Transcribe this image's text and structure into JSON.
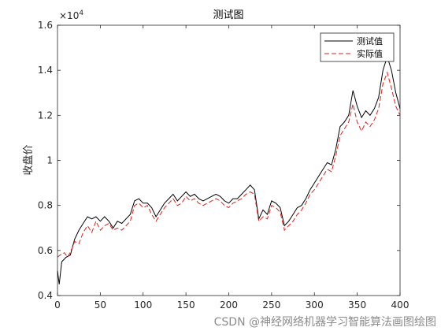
{
  "chart_data": {
    "type": "line",
    "title": "测试图",
    "xlabel": "",
    "ylabel": "收盘价",
    "xlim": [
      0,
      400
    ],
    "ylim": [
      4000,
      16000
    ],
    "x_ticks": [
      "0",
      "50",
      "100",
      "150",
      "200",
      "250",
      "300",
      "350",
      "400"
    ],
    "y_ticks": [
      "0.4",
      "0.6",
      "0.8",
      "1",
      "1.2",
      "1.4",
      "1.6"
    ],
    "y_exponent": "×10",
    "y_exponent_power": "4",
    "grid": false,
    "legend_position": "top-right",
    "series": [
      {
        "name": "测试值",
        "color": "#000000",
        "style": "solid",
        "points": [
          [
            0,
            5100
          ],
          [
            2,
            4500
          ],
          [
            5,
            5500
          ],
          [
            10,
            5700
          ],
          [
            15,
            5800
          ],
          [
            20,
            6500
          ],
          [
            25,
            6900
          ],
          [
            30,
            7200
          ],
          [
            35,
            7500
          ],
          [
            40,
            7400
          ],
          [
            45,
            7500
          ],
          [
            50,
            7300
          ],
          [
            55,
            7500
          ],
          [
            60,
            7300
          ],
          [
            65,
            7000
          ],
          [
            70,
            7300
          ],
          [
            75,
            7200
          ],
          [
            80,
            7400
          ],
          [
            85,
            7600
          ],
          [
            90,
            8200
          ],
          [
            95,
            8300
          ],
          [
            100,
            8100
          ],
          [
            105,
            8100
          ],
          [
            110,
            7900
          ],
          [
            115,
            7500
          ],
          [
            120,
            7800
          ],
          [
            125,
            8100
          ],
          [
            130,
            8300
          ],
          [
            135,
            8500
          ],
          [
            140,
            8200
          ],
          [
            145,
            8400
          ],
          [
            150,
            8600
          ],
          [
            155,
            8400
          ],
          [
            160,
            8500
          ],
          [
            165,
            8300
          ],
          [
            170,
            8200
          ],
          [
            175,
            8300
          ],
          [
            180,
            8400
          ],
          [
            185,
            8500
          ],
          [
            190,
            8400
          ],
          [
            195,
            8200
          ],
          [
            200,
            8100
          ],
          [
            205,
            8300
          ],
          [
            210,
            8300
          ],
          [
            215,
            8500
          ],
          [
            220,
            8700
          ],
          [
            225,
            8900
          ],
          [
            230,
            8700
          ],
          [
            235,
            7400
          ],
          [
            240,
            7800
          ],
          [
            245,
            7600
          ],
          [
            250,
            8200
          ],
          [
            255,
            8100
          ],
          [
            260,
            7900
          ],
          [
            265,
            7100
          ],
          [
            270,
            7300
          ],
          [
            275,
            7600
          ],
          [
            280,
            7900
          ],
          [
            285,
            8000
          ],
          [
            290,
            8300
          ],
          [
            295,
            8700
          ],
          [
            300,
            9000
          ],
          [
            305,
            9300
          ],
          [
            310,
            9600
          ],
          [
            315,
            9900
          ],
          [
            320,
            9800
          ],
          [
            325,
            10500
          ],
          [
            330,
            11500
          ],
          [
            335,
            11700
          ],
          [
            340,
            12000
          ],
          [
            345,
            13100
          ],
          [
            350,
            12400
          ],
          [
            355,
            11900
          ],
          [
            360,
            12200
          ],
          [
            365,
            12000
          ],
          [
            370,
            12300
          ],
          [
            375,
            12800
          ],
          [
            380,
            14000
          ],
          [
            385,
            14600
          ],
          [
            390,
            14000
          ],
          [
            395,
            13000
          ],
          [
            400,
            12300
          ]
        ]
      },
      {
        "name": "实际值",
        "color": "#e0201c",
        "style": "dashed",
        "points": [
          [
            0,
            5700
          ],
          [
            3,
            5800
          ],
          [
            8,
            5900
          ],
          [
            12,
            5700
          ],
          [
            17,
            6100
          ],
          [
            20,
            6400
          ],
          [
            25,
            6300
          ],
          [
            30,
            6800
          ],
          [
            35,
            7100
          ],
          [
            40,
            6800
          ],
          [
            45,
            7300
          ],
          [
            50,
            6900
          ],
          [
            55,
            7100
          ],
          [
            60,
            7200
          ],
          [
            65,
            6900
          ],
          [
            70,
            7000
          ],
          [
            75,
            6900
          ],
          [
            80,
            7100
          ],
          [
            85,
            7300
          ],
          [
            90,
            8000
          ],
          [
            95,
            8100
          ],
          [
            100,
            7900
          ],
          [
            105,
            8000
          ],
          [
            110,
            7600
          ],
          [
            115,
            7300
          ],
          [
            120,
            7600
          ],
          [
            125,
            7900
          ],
          [
            130,
            8100
          ],
          [
            135,
            8300
          ],
          [
            140,
            8000
          ],
          [
            145,
            8100
          ],
          [
            150,
            8400
          ],
          [
            155,
            8200
          ],
          [
            160,
            8300
          ],
          [
            165,
            8100
          ],
          [
            170,
            8000
          ],
          [
            175,
            8100
          ],
          [
            180,
            8200
          ],
          [
            185,
            8300
          ],
          [
            190,
            8200
          ],
          [
            195,
            8000
          ],
          [
            200,
            7900
          ],
          [
            205,
            8100
          ],
          [
            210,
            8200
          ],
          [
            215,
            8300
          ],
          [
            220,
            8500
          ],
          [
            225,
            8600
          ],
          [
            230,
            8500
          ],
          [
            235,
            7300
          ],
          [
            240,
            7500
          ],
          [
            245,
            7400
          ],
          [
            250,
            8000
          ],
          [
            255,
            7900
          ],
          [
            260,
            7700
          ],
          [
            265,
            6900
          ],
          [
            270,
            7100
          ],
          [
            275,
            7300
          ],
          [
            280,
            7600
          ],
          [
            285,
            7800
          ],
          [
            290,
            8100
          ],
          [
            295,
            8500
          ],
          [
            300,
            8700
          ],
          [
            305,
            9000
          ],
          [
            310,
            9300
          ],
          [
            315,
            9600
          ],
          [
            320,
            9500
          ],
          [
            325,
            10200
          ],
          [
            330,
            11100
          ],
          [
            335,
            11400
          ],
          [
            340,
            11700
          ],
          [
            345,
            12500
          ],
          [
            350,
            11700
          ],
          [
            355,
            11300
          ],
          [
            360,
            11700
          ],
          [
            365,
            11500
          ],
          [
            370,
            11800
          ],
          [
            375,
            12300
          ],
          [
            380,
            13400
          ],
          [
            385,
            13900
          ],
          [
            390,
            13200
          ],
          [
            395,
            12400
          ],
          [
            400,
            12000
          ]
        ]
      }
    ]
  },
  "watermark": "CSDN @神经网络机器学习智能算法画图绘图"
}
